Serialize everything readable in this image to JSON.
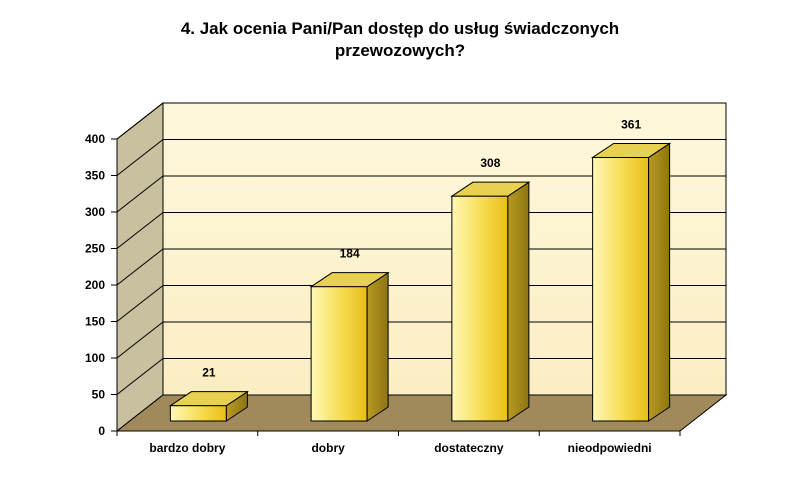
{
  "chart_data": {
    "type": "bar",
    "title_line1": "4. Jak ocenia Pani/Pan dostęp do usług świadczonych",
    "title_line2": "przewozowych?",
    "categories": [
      "bardzo dobry",
      "dobry",
      "dostateczny",
      "nieodpowiedni"
    ],
    "values": [
      21,
      184,
      308,
      361
    ],
    "data_labels": [
      "21",
      "184",
      "308",
      "361"
    ],
    "yticks": [
      "0",
      "50",
      "100",
      "150",
      "200",
      "250",
      "300",
      "350",
      "400"
    ],
    "ylim": [
      0,
      400
    ],
    "grid": true,
    "style_3d": true,
    "colors": {
      "wall_back": "#fdf5d2",
      "wall_side": "#c9c0a0",
      "floor": "#a08a5c",
      "bar_front_light": "#fff6a8",
      "bar_front_dark": "#ecc21e",
      "bar_top": "#e8d050",
      "bar_side": "#a8901e",
      "grid": "#000000"
    }
  }
}
